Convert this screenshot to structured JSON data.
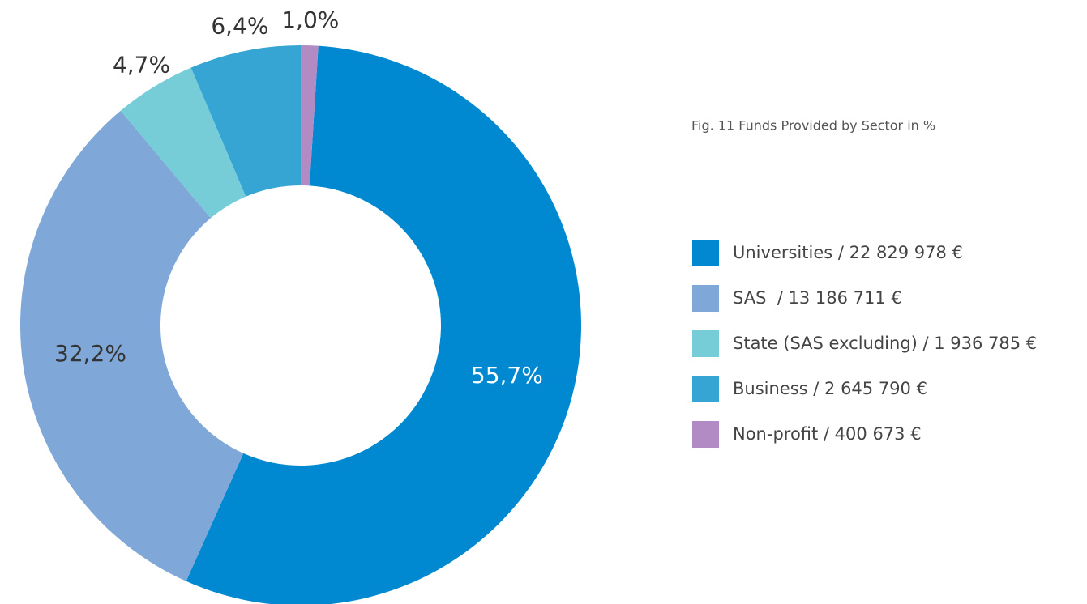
{
  "chart_data": {
    "type": "donut",
    "title": "Fig. 11 Funds Provided by Sector in %",
    "categories": [
      "Universities / 22 829 978 €",
      "SAS  / 13 186 711 €",
      "State (SAS excluding) / 1 936 785 €",
      "Business / 2 645 790 €",
      "Non-profit / 400 673 €"
    ],
    "values": [
      55.7,
      32.2,
      4.7,
      6.4,
      1.0
    ],
    "value_labels": [
      "55,7%",
      "32,2%",
      "4,7%",
      "6,4%",
      "1,0%"
    ],
    "colors": [
      "#0089d0",
      "#7fa7d8",
      "#76cdd8",
      "#36a5d3",
      "#b28bc4"
    ],
    "legend": "right"
  }
}
